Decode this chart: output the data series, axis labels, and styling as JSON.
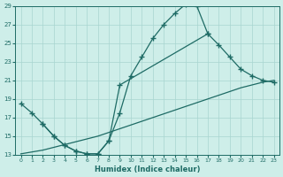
{
  "xlabel": "Humidex (Indice chaleur)",
  "xlim": [
    -0.5,
    23.5
  ],
  "ylim": [
    13,
    29
  ],
  "bg_color": "#ceeee9",
  "grid_color": "#a8d5d0",
  "line_color": "#1e6b65",
  "curve1_x": [
    0,
    1,
    2,
    3,
    4,
    5,
    6,
    7,
    8,
    9,
    10,
    11,
    12,
    13,
    14,
    15,
    16,
    17
  ],
  "curve1_y": [
    18.5,
    17.5,
    16.3,
    15.0,
    14.0,
    13.4,
    13.1,
    13.1,
    14.5,
    17.5,
    21.5,
    23.5,
    25.5,
    27.0,
    28.2,
    29.2,
    29.0,
    26.0
  ],
  "curve2_x": [
    2,
    3,
    4,
    5,
    6,
    7,
    8,
    9,
    17,
    18,
    19,
    20,
    21,
    22,
    23
  ],
  "curve2_y": [
    16.3,
    15.0,
    14.0,
    13.4,
    13.1,
    13.1,
    14.5,
    20.5,
    26.0,
    24.8,
    23.5,
    22.2,
    21.5,
    21.0,
    20.8
  ],
  "curve3_x": [
    0,
    1,
    2,
    3,
    4,
    5,
    6,
    7,
    8,
    9,
    10,
    11,
    12,
    13,
    14,
    15,
    16,
    17,
    18,
    19,
    20,
    21,
    22,
    23
  ],
  "curve3_y": [
    13.1,
    13.3,
    13.5,
    13.8,
    14.1,
    14.4,
    14.7,
    15.0,
    15.4,
    15.8,
    16.2,
    16.6,
    17.0,
    17.4,
    17.8,
    18.2,
    18.6,
    19.0,
    19.4,
    19.8,
    20.2,
    20.5,
    20.8,
    21.0
  ],
  "xticks": [
    0,
    1,
    2,
    3,
    4,
    5,
    6,
    7,
    8,
    9,
    10,
    11,
    12,
    13,
    14,
    15,
    16,
    17,
    18,
    19,
    20,
    21,
    22,
    23
  ],
  "yticks": [
    13,
    15,
    17,
    19,
    21,
    23,
    25,
    27,
    29
  ]
}
